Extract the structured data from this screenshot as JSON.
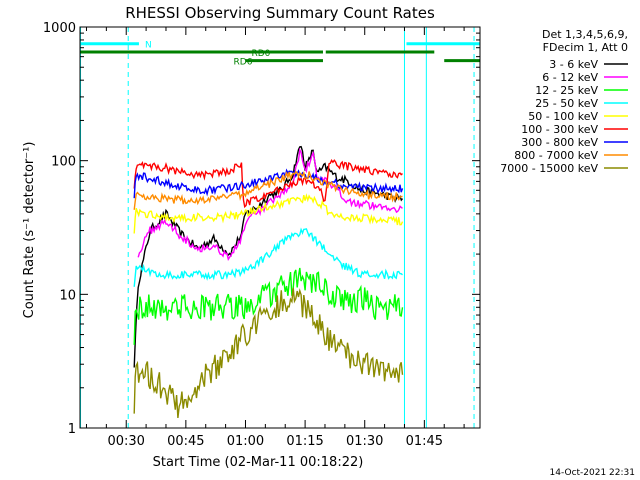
{
  "chart_data": {
    "type": "line",
    "title": "RHESSI Observing Summary Count Rates",
    "xlabel": "Start Time (02-Mar-11 00:18:22)",
    "ylabel": "Count Rate (s⁻¹ detector⁻¹)",
    "y_scale": "log",
    "ylim": [
      1,
      1000
    ],
    "x_unit": "minutes after 00:00 UT",
    "xlim": [
      18.37,
      119
    ],
    "x_ticks": [
      {
        "value": 30,
        "label": "00:30"
      },
      {
        "value": 45,
        "label": "00:45"
      },
      {
        "value": 60,
        "label": "01:00"
      },
      {
        "value": 75,
        "label": "01:15"
      },
      {
        "value": 90,
        "label": "01:30"
      },
      {
        "value": 105,
        "label": "01:45"
      }
    ],
    "y_ticks": [
      {
        "value": 1,
        "label": "1"
      },
      {
        "value": 10,
        "label": "10"
      },
      {
        "value": 100,
        "label": "100"
      },
      {
        "value": 1000,
        "label": "1000"
      }
    ],
    "legend": {
      "placement": "right",
      "header": [
        "Det 1,3,4,5,6,9,",
        "FDecim 1, Att 0"
      ]
    },
    "series": [
      {
        "name": "3 - 6 keV",
        "color": "#000000",
        "x": [
          32,
          33,
          36,
          40,
          44,
          48,
          52,
          56,
          59,
          60,
          63,
          66,
          69,
          72,
          73,
          74,
          75,
          76,
          77,
          78,
          80,
          83,
          86,
          89,
          92,
          95,
          98,
          99.5
        ],
        "y": [
          3,
          12,
          30,
          40,
          28,
          22,
          26,
          20,
          28,
          40,
          45,
          55,
          60,
          80,
          110,
          130,
          90,
          100,
          120,
          80,
          90,
          75,
          70,
          60,
          58,
          55,
          52,
          52
        ]
      },
      {
        "name": "6 - 12 keV",
        "color": "#ff00ff",
        "x": [
          33,
          36,
          40,
          44,
          48,
          52,
          56,
          59,
          60,
          63,
          66,
          69,
          72,
          73,
          74,
          75,
          76,
          77,
          78,
          80,
          83,
          86,
          89,
          92,
          95,
          98,
          99.5
        ],
        "y": [
          20,
          30,
          35,
          27,
          22,
          23,
          19,
          26,
          35,
          40,
          48,
          55,
          70,
          100,
          120,
          85,
          95,
          110,
          75,
          70,
          60,
          50,
          48,
          46,
          45,
          44,
          44
        ]
      },
      {
        "name": "12 - 25 keV",
        "color": "#00ff00",
        "x": [
          32,
          32.5,
          35,
          40,
          45,
          50,
          55,
          60,
          63,
          66,
          69,
          72,
          75,
          78,
          81,
          84,
          87,
          90,
          93,
          96,
          99.5
        ],
        "y": [
          5,
          8,
          8,
          8,
          8,
          8,
          8,
          8,
          9,
          10,
          11,
          12,
          13,
          12,
          10,
          9,
          9,
          9,
          8,
          8,
          8
        ]
      },
      {
        "name": "25 - 50 keV",
        "color": "#00ffff",
        "x": [
          32,
          32.5,
          35,
          40,
          45,
          50,
          55,
          60,
          63,
          66,
          69,
          72,
          75,
          78,
          81,
          84,
          87,
          90,
          93,
          96,
          99.5
        ],
        "y": [
          12,
          16,
          15,
          14,
          14,
          14,
          14,
          15,
          17,
          20,
          24,
          27,
          30,
          25,
          20,
          17,
          15,
          14,
          14,
          14,
          14
        ]
      },
      {
        "name": "50 - 100 keV",
        "color": "#ffff00",
        "x": [
          32,
          32.5,
          35,
          40,
          45,
          50,
          55,
          60,
          63,
          66,
          69,
          72,
          75,
          78,
          80,
          81,
          84,
          87,
          90,
          93,
          96,
          99.5
        ],
        "y": [
          30,
          42,
          40,
          38,
          37,
          38,
          38,
          40,
          44,
          46,
          48,
          50,
          52,
          50,
          45,
          39,
          38,
          37,
          37,
          36,
          36,
          35
        ]
      },
      {
        "name": "100 - 300 keV",
        "color": "#ff0000",
        "x": [
          32,
          32.5,
          35,
          40,
          45,
          50,
          55,
          58,
          59,
          59.5,
          62,
          65,
          68,
          71,
          73,
          76,
          79,
          80,
          81,
          84,
          87,
          90,
          93,
          96,
          99.5
        ],
        "y": [
          65,
          92,
          92,
          88,
          80,
          78,
          82,
          90,
          98,
          48,
          50,
          55,
          60,
          66,
          70,
          70,
          60,
          50,
          100,
          92,
          90,
          85,
          82,
          80,
          80
        ]
      },
      {
        "name": "300 - 800 keV",
        "color": "#0000ff",
        "x": [
          32,
          32.5,
          35,
          40,
          45,
          50,
          55,
          60,
          65,
          70,
          73,
          76,
          79,
          82,
          85,
          88,
          91,
          94,
          97,
          99.5
        ],
        "y": [
          55,
          78,
          75,
          68,
          62,
          60,
          62,
          66,
          72,
          80,
          82,
          78,
          72,
          68,
          65,
          63,
          62,
          62,
          62,
          62
        ]
      },
      {
        "name": "800 - 7000 keV",
        "color": "#ff8c00",
        "x": [
          32,
          32.5,
          35,
          40,
          45,
          50,
          55,
          60,
          65,
          70,
          73,
          76,
          79,
          82,
          85,
          88,
          91,
          94,
          97,
          99.5
        ],
        "y": [
          45,
          56,
          54,
          52,
          50,
          51,
          53,
          57,
          65,
          75,
          80,
          78,
          70,
          64,
          60,
          57,
          55,
          55,
          54,
          54
        ]
      },
      {
        "name": "7000 - 15000 keV",
        "color": "#8b8b00",
        "x": [
          32,
          32.5,
          35,
          38,
          41,
          43,
          46,
          49,
          52,
          55,
          58,
          61,
          64,
          67,
          70,
          73,
          75,
          78,
          81,
          84,
          87,
          90,
          93,
          96,
          99.5
        ],
        "y": [
          1.5,
          2.6,
          2.6,
          2.2,
          1.7,
          1.4,
          1.7,
          2.3,
          2.8,
          3.3,
          4.3,
          5.5,
          6.5,
          8,
          9,
          9,
          8,
          6,
          4.5,
          3.8,
          3.3,
          3,
          2.8,
          2.6,
          2.5
        ]
      }
    ],
    "annotations": [
      {
        "label": "N",
        "color": "#00ffff",
        "segments": [
          [
            18.4,
            33.2
          ],
          [
            100.5,
            119
          ]
        ],
        "level": 750
      },
      {
        "label": "RD0",
        "color": "#008000",
        "segments": [
          [
            18.4,
            79.5
          ],
          [
            80.2,
            107.5
          ]
        ],
        "level": 650
      },
      {
        "label": "RD6",
        "color": "#008000",
        "segments": [
          [
            60,
            79.5
          ],
          [
            110,
            119
          ]
        ],
        "level": 560
      }
    ],
    "vertical_markers": [
      {
        "x": 18.5,
        "color": "#00ffff",
        "style": "solid"
      },
      {
        "x": 30.5,
        "color": "#00ffff",
        "style": "dashed"
      },
      {
        "x": 100,
        "color": "#00ffff",
        "style": "solid"
      },
      {
        "x": 105.5,
        "color": "#00ffff",
        "style": "solid"
      },
      {
        "x": 117.5,
        "color": "#00ffff",
        "style": "dashed"
      }
    ],
    "grid": false
  },
  "footer": {
    "timestamp": "14-Oct-2021 22:31"
  }
}
